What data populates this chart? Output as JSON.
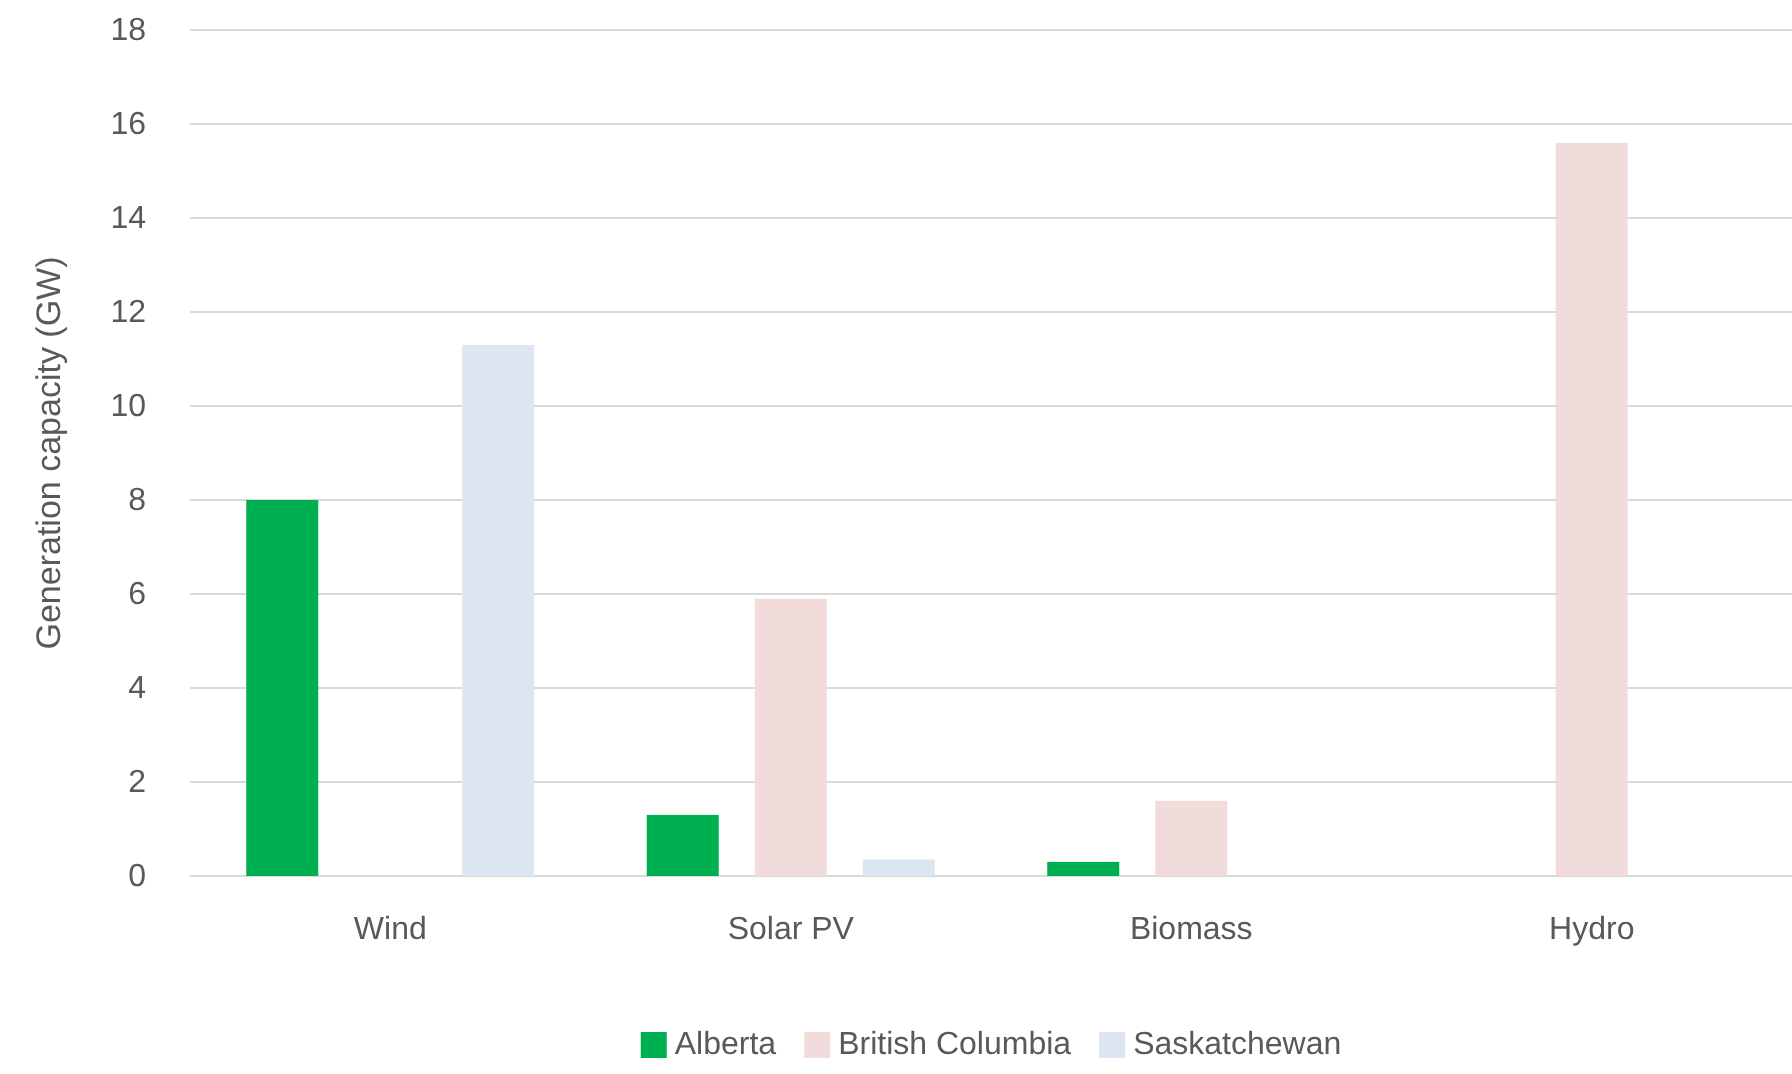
{
  "chart_data": {
    "type": "bar",
    "ylabel": "Generation capacity (GW)",
    "categories": [
      "Wind",
      "Solar PV",
      "Biomass",
      "Hydro"
    ],
    "series": [
      {
        "name": "Alberta",
        "color": "#00b050",
        "values": [
          8.0,
          1.3,
          0.3,
          null
        ]
      },
      {
        "name": "British Columbia",
        "color": "#f2dcdb",
        "values": [
          null,
          5.9,
          1.6,
          15.6
        ]
      },
      {
        "name": "Saskatchewan",
        "color": "#dce6f2",
        "values": [
          11.3,
          0.35,
          null,
          null
        ]
      }
    ],
    "ylim": [
      0,
      18
    ],
    "yticks": [
      0,
      2,
      4,
      6,
      8,
      10,
      12,
      14,
      16,
      18
    ],
    "grid": "y",
    "legend": "bottom"
  }
}
